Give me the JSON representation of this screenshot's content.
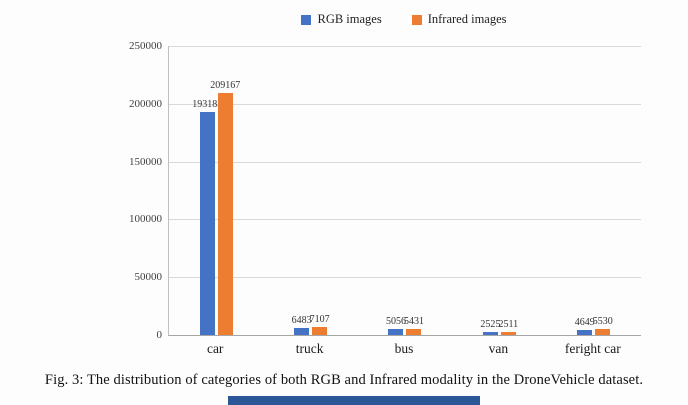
{
  "chart_data": {
    "type": "bar",
    "title": "",
    "categories": [
      "car",
      "truck",
      "bus",
      "van",
      "feright car"
    ],
    "series": [
      {
        "name": "RGB images",
        "color": "#4472C4",
        "values": [
          193183,
          6483,
          5056,
          2525,
          4649
        ]
      },
      {
        "name": "Infrared images",
        "color": "#ED7D31",
        "values": [
          209167,
          7107,
          5431,
          2511,
          5530
        ]
      }
    ],
    "xlabel": "",
    "ylabel": "",
    "ylim": [
      0,
      250000
    ],
    "ytick_step": 50000,
    "grid": true,
    "legend_position": "top",
    "value_labels": true
  },
  "caption": "Fig. 3: The distribution of categories of both RGB and Infrared modality in the DroneVehicle dataset."
}
